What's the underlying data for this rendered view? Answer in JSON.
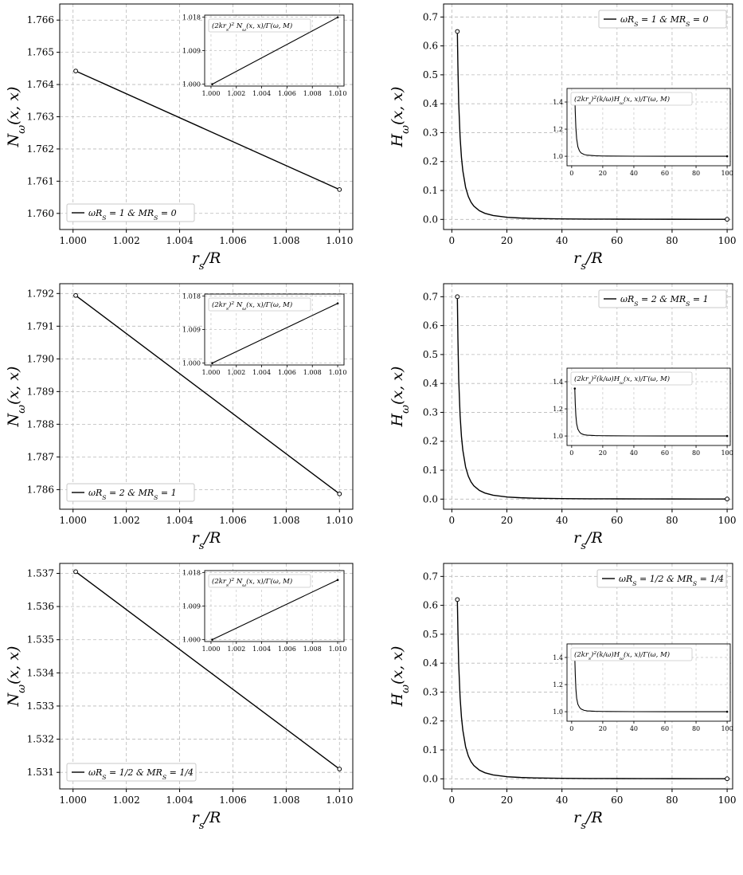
{
  "figure": {
    "caption_fragment": ""
  },
  "chart_data": [
    {
      "type": "line",
      "panel": "N-1",
      "ylabel": "N_ω(x, x)",
      "xlabel": "r_s/R_S",
      "xlim": [
        0.9995,
        1.0105
      ],
      "ylim": [
        1.7595,
        1.7665
      ],
      "xticks": [
        1.0,
        1.002,
        1.004,
        1.006,
        1.008,
        1.01
      ],
      "xtick_labels": [
        "1.000",
        "1.002",
        "1.004",
        "1.006",
        "1.008",
        "1.010"
      ],
      "yticks": [
        1.76,
        1.761,
        1.762,
        1.763,
        1.764,
        1.765,
        1.766
      ],
      "ytick_labels": [
        "1.760",
        "1.761",
        "1.762",
        "1.763",
        "1.764",
        "1.765",
        "1.766"
      ],
      "grid": true,
      "legend": {
        "position": "lower-left",
        "text": "ωR_S = 1 & MR_S = 0"
      },
      "series": [
        {
          "x": [
            1.0001,
            1.01
          ],
          "y": [
            1.76442,
            1.76074
          ]
        }
      ],
      "endpoints": [
        {
          "x": 1.0001,
          "y": 1.76442
        },
        {
          "x": 1.01,
          "y": 1.76074
        }
      ],
      "inset": {
        "type": "line",
        "legend": "(2kr_s)^2 N_ω(x, x)/Γ(ω, M)",
        "legend_position": "top-left",
        "xlim": [
          0.9995,
          1.0105
        ],
        "ylim": [
          0.9995,
          1.0185
        ],
        "xticks": [
          1.0,
          1.002,
          1.004,
          1.006,
          1.008,
          1.01
        ],
        "xtick_labels": [
          "1.000",
          "1.002",
          "1.004",
          "1.006",
          "1.008",
          "1.010"
        ],
        "yticks": [
          1.0,
          1.009,
          1.018
        ],
        "ytick_labels": [
          "1.000",
          "1.009",
          "1.018"
        ],
        "series": [
          {
            "x": [
              1.0001,
              1.01
            ],
            "y": [
              1.0,
              1.0179
            ]
          }
        ]
      }
    },
    {
      "type": "line",
      "panel": "H-1",
      "ylabel": "H_ω(x, x)",
      "xlabel": "r_s/R_S",
      "xlim": [
        -3,
        102
      ],
      "ylim": [
        -0.035,
        0.745
      ],
      "xticks": [
        0,
        20,
        40,
        60,
        80,
        100
      ],
      "xtick_labels": [
        "0",
        "20",
        "40",
        "60",
        "80",
        "100"
      ],
      "yticks": [
        0.0,
        0.1,
        0.2,
        0.3,
        0.4,
        0.5,
        0.6,
        0.7
      ],
      "ytick_labels": [
        "0.0",
        "0.1",
        "0.2",
        "0.3",
        "0.4",
        "0.5",
        "0.6",
        "0.7"
      ],
      "grid": true,
      "legend": {
        "position": "top-right",
        "text": "ωR_S = 1 & MR_S = 0"
      },
      "series": [
        {
          "x": [
            2.01,
            2.2,
            2.5,
            3,
            3.5,
            4,
            5,
            6,
            7,
            8,
            10,
            12,
            15,
            20,
            25,
            30,
            40,
            50,
            60,
            70,
            80,
            90,
            100
          ],
          "y": [
            0.65,
            0.532,
            0.402,
            0.285,
            0.214,
            0.168,
            0.111,
            0.079,
            0.059,
            0.046,
            0.03,
            0.021,
            0.0133,
            0.0073,
            0.0046,
            0.0032,
            0.0018,
            0.0011,
            0.0008,
            0.0006,
            0.0005,
            0.0004,
            0.0003
          ]
        }
      ],
      "endpoints": [
        {
          "x": 2.01,
          "y": 0.65
        },
        {
          "x": 100,
          "y": 0.0003
        }
      ],
      "inset": {
        "type": "line",
        "legend": "(2kr_s)^2(k/ω)H_ω(x, x)/Γ(ω, M)",
        "legend_position": "top-left",
        "xlim": [
          -3,
          102
        ],
        "ylim": [
          0.93,
          1.5
        ],
        "xticks": [
          0,
          20,
          40,
          60,
          80,
          100
        ],
        "xtick_labels": [
          "0",
          "20",
          "40",
          "60",
          "80",
          "100"
        ],
        "yticks": [
          1.0,
          1.2,
          1.4
        ],
        "ytick_labels": [
          "1.0",
          "1.2",
          "1.4"
        ],
        "series": [
          {
            "x": [
              2.01,
              2.3,
              2.7,
              3.2,
              4,
              5,
              6,
              8,
              10,
              15,
              20,
              40,
              60,
              80,
              100
            ],
            "y": [
              1.46,
              1.33,
              1.21,
              1.13,
              1.07,
              1.04,
              1.025,
              1.013,
              1.008,
              1.004,
              1.002,
              1.0005,
              1.0002,
              1.0001,
              1.0
            ]
          }
        ]
      }
    },
    {
      "type": "line",
      "panel": "N-2",
      "ylabel": "N_ω(x, x)",
      "xlabel": "r_s/R_S",
      "xlim": [
        0.9995,
        1.0105
      ],
      "ylim": [
        1.7854,
        1.7923
      ],
      "xticks": [
        1.0,
        1.002,
        1.004,
        1.006,
        1.008,
        1.01
      ],
      "xtick_labels": [
        "1.000",
        "1.002",
        "1.004",
        "1.006",
        "1.008",
        "1.010"
      ],
      "yticks": [
        1.786,
        1.787,
        1.788,
        1.789,
        1.79,
        1.791,
        1.792
      ],
      "ytick_labels": [
        "1.786",
        "1.787",
        "1.788",
        "1.789",
        "1.790",
        "1.791",
        "1.792"
      ],
      "grid": true,
      "legend": {
        "position": "lower-left",
        "text": "ωR_S = 2 & MR_S = 1"
      },
      "series": [
        {
          "x": [
            1.0001,
            1.01
          ],
          "y": [
            1.79194,
            1.78587
          ]
        }
      ],
      "endpoints": [
        {
          "x": 1.0001,
          "y": 1.79194
        },
        {
          "x": 1.01,
          "y": 1.78587
        }
      ],
      "inset": {
        "type": "line",
        "legend": "(2kr_s)^2 N_ω(x, x)/Γ(ω, M)",
        "legend_position": "top-left",
        "xlim": [
          0.9995,
          1.0105
        ],
        "ylim": [
          0.9995,
          1.0185
        ],
        "xticks": [
          1.0,
          1.002,
          1.004,
          1.006,
          1.008,
          1.01
        ],
        "xtick_labels": [
          "1.000",
          "1.002",
          "1.004",
          "1.006",
          "1.008",
          "1.010"
        ],
        "yticks": [
          1.0,
          1.009,
          1.018
        ],
        "ytick_labels": [
          "1.000",
          "1.009",
          "1.018"
        ],
        "series": [
          {
            "x": [
              1.0001,
              1.01
            ],
            "y": [
              1.0,
              1.016
            ]
          }
        ]
      }
    },
    {
      "type": "line",
      "panel": "H-2",
      "ylabel": "H_ω(x, x)",
      "xlabel": "r_s/R_S",
      "xlim": [
        -3,
        102
      ],
      "ylim": [
        -0.035,
        0.745
      ],
      "xticks": [
        0,
        20,
        40,
        60,
        80,
        100
      ],
      "xtick_labels": [
        "0",
        "20",
        "40",
        "60",
        "80",
        "100"
      ],
      "yticks": [
        0.0,
        0.1,
        0.2,
        0.3,
        0.4,
        0.5,
        0.6,
        0.7
      ],
      "ytick_labels": [
        "0.0",
        "0.1",
        "0.2",
        "0.3",
        "0.4",
        "0.5",
        "0.6",
        "0.7"
      ],
      "grid": true,
      "legend": {
        "position": "top-right",
        "text": "ωR_S = 2 & MR_S = 1"
      },
      "series": [
        {
          "x": [
            2.01,
            2.2,
            2.5,
            3,
            3.5,
            4,
            5,
            6,
            7,
            8,
            10,
            12,
            15,
            20,
            25,
            30,
            40,
            50,
            60,
            70,
            80,
            90,
            100
          ],
          "y": [
            0.7,
            0.56,
            0.415,
            0.29,
            0.216,
            0.169,
            0.111,
            0.079,
            0.059,
            0.046,
            0.03,
            0.021,
            0.0133,
            0.0073,
            0.0046,
            0.0032,
            0.0018,
            0.0011,
            0.0008,
            0.0006,
            0.0005,
            0.0004,
            0.0003
          ]
        }
      ],
      "endpoints": [
        {
          "x": 2.01,
          "y": 0.7
        },
        {
          "x": 100,
          "y": 0.0003
        }
      ],
      "inset": {
        "type": "line",
        "legend": "(2kr_s)^2(k/ω)H_ω(x, x)/Γ(ω, M)",
        "legend_position": "top-left",
        "xlim": [
          -3,
          102
        ],
        "ylim": [
          0.93,
          1.5
        ],
        "xticks": [
          0,
          20,
          40,
          60,
          80,
          100
        ],
        "xtick_labels": [
          "0",
          "20",
          "40",
          "60",
          "80",
          "100"
        ],
        "yticks": [
          1.0,
          1.2,
          1.4
        ],
        "ytick_labels": [
          "1.0",
          "1.2",
          "1.4"
        ],
        "series": [
          {
            "x": [
              2.01,
              2.3,
              2.7,
              3.2,
              4,
              5,
              6,
              8,
              10,
              15,
              20,
              40,
              60,
              80,
              100
            ],
            "y": [
              1.35,
              1.24,
              1.15,
              1.09,
              1.05,
              1.03,
              1.018,
              1.009,
              1.006,
              1.003,
              1.002,
              1.0005,
              1.0002,
              1.0001,
              1.0
            ]
          }
        ]
      }
    },
    {
      "type": "line",
      "panel": "N-3",
      "ylabel": "N_ω(x, x)",
      "xlabel": "r_s/R_S",
      "xlim": [
        0.9995,
        1.0105
      ],
      "ylim": [
        1.5305,
        1.5373
      ],
      "xticks": [
        1.0,
        1.002,
        1.004,
        1.006,
        1.008,
        1.01
      ],
      "xtick_labels": [
        "1.000",
        "1.002",
        "1.004",
        "1.006",
        "1.008",
        "1.010"
      ],
      "yticks": [
        1.531,
        1.532,
        1.533,
        1.534,
        1.535,
        1.536,
        1.537
      ],
      "ytick_labels": [
        "1.531",
        "1.532",
        "1.533",
        "1.534",
        "1.535",
        "1.536",
        "1.537"
      ],
      "grid": true,
      "legend": {
        "position": "lower-left",
        "text": "ωR_S = 1/2 & MR_S = 1/4"
      },
      "series": [
        {
          "x": [
            1.0001,
            1.01
          ],
          "y": [
            1.53705,
            1.5311
          ]
        }
      ],
      "endpoints": [
        {
          "x": 1.0001,
          "y": 1.53705
        },
        {
          "x": 1.01,
          "y": 1.5311
        }
      ],
      "inset": {
        "type": "line",
        "legend": "(2kr_s)^2 N_ω(x, x)/Γ(ω, M)",
        "legend_position": "top-left",
        "xlim": [
          0.9995,
          1.0105
        ],
        "ylim": [
          0.9995,
          1.0185
        ],
        "xticks": [
          1.0,
          1.002,
          1.004,
          1.006,
          1.008,
          1.01
        ],
        "xtick_labels": [
          "1.000",
          "1.002",
          "1.004",
          "1.006",
          "1.008",
          "1.010"
        ],
        "yticks": [
          1.0,
          1.009,
          1.018
        ],
        "ytick_labels": [
          "1.000",
          "1.009",
          "1.018"
        ],
        "series": [
          {
            "x": [
              1.0001,
              1.01
            ],
            "y": [
              1.0,
              1.016
            ]
          }
        ]
      }
    },
    {
      "type": "line",
      "panel": "H-3",
      "ylabel": "H_ω(x, x)",
      "xlabel": "r_s/R_S",
      "xlim": [
        -3,
        102
      ],
      "ylim": [
        -0.035,
        0.745
      ],
      "xticks": [
        0,
        20,
        40,
        60,
        80,
        100
      ],
      "xtick_labels": [
        "0",
        "20",
        "40",
        "60",
        "80",
        "100"
      ],
      "yticks": [
        0.0,
        0.1,
        0.2,
        0.3,
        0.4,
        0.5,
        0.6,
        0.7
      ],
      "ytick_labels": [
        "0.0",
        "0.1",
        "0.2",
        "0.3",
        "0.4",
        "0.5",
        "0.6",
        "0.7"
      ],
      "grid": true,
      "legend": {
        "position": "top-right",
        "text": "ωR_S = 1/2 & MR_S = 1/4"
      },
      "series": [
        {
          "x": [
            2.01,
            2.2,
            2.5,
            3,
            3.5,
            4,
            5,
            6,
            7,
            8,
            10,
            12,
            15,
            20,
            25,
            30,
            40,
            50,
            60,
            70,
            80,
            90,
            100
          ],
          "y": [
            0.62,
            0.515,
            0.395,
            0.282,
            0.213,
            0.168,
            0.111,
            0.079,
            0.059,
            0.046,
            0.03,
            0.021,
            0.0133,
            0.0073,
            0.0046,
            0.0032,
            0.0018,
            0.0011,
            0.0008,
            0.0006,
            0.0005,
            0.0004,
            0.0003
          ]
        }
      ],
      "endpoints": [
        {
          "x": 2.01,
          "y": 0.62
        },
        {
          "x": 100,
          "y": 0.0003
        }
      ],
      "inset": {
        "type": "line",
        "legend": "(2kr_s)^2(k/ω)H_ω(x, x)/Γ(ω, M)",
        "legend_position": "top-left",
        "xlim": [
          -3,
          102
        ],
        "ylim": [
          0.93,
          1.5
        ],
        "xticks": [
          0,
          20,
          40,
          60,
          80,
          100
        ],
        "xtick_labels": [
          "0",
          "20",
          "40",
          "60",
          "80",
          "100"
        ],
        "yticks": [
          1.0,
          1.2,
          1.4
        ],
        "ytick_labels": [
          "1.0",
          "1.2",
          "1.4"
        ],
        "series": [
          {
            "x": [
              2.01,
              2.3,
              2.7,
              3.2,
              4,
              5,
              6,
              8,
              10,
              15,
              20,
              40,
              60,
              80,
              100
            ],
            "y": [
              1.4,
              1.28,
              1.17,
              1.1,
              1.055,
              1.033,
              1.02,
              1.01,
              1.006,
              1.003,
              1.002,
              1.0005,
              1.0002,
              1.0001,
              1.0
            ]
          }
        ]
      }
    }
  ]
}
